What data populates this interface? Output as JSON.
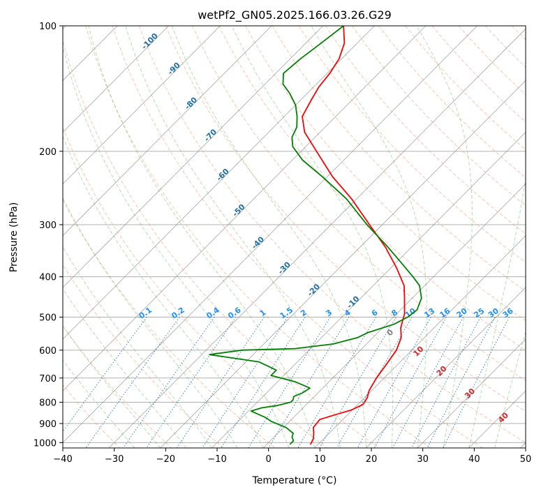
{
  "chart_data": {
    "type": "skew-t",
    "title": "wetPf2_GN05.2025.166.03.26.G29",
    "xlabel": "Temperature (°C)",
    "ylabel": "Pressure (hPa)",
    "xlim": [
      -40,
      50
    ],
    "ylim": [
      1030,
      100
    ],
    "y_scale": "log",
    "x_ticks": [
      -40,
      -30,
      -20,
      -10,
      0,
      10,
      20,
      30,
      40,
      50
    ],
    "y_ticks": [
      100,
      200,
      300,
      400,
      500,
      600,
      700,
      800,
      900,
      1000
    ],
    "grid": true,
    "colors": {
      "temperature": "#ff0000",
      "dewpoint": "#008000",
      "isotherm": "#808080",
      "dry_adiabat": "#ff7f50",
      "moist_adiabat": "#2ca02c",
      "mixing_ratio": "#1f77b4",
      "mixing_ratio_label": "#1e90ff",
      "isotherm_label": "#1f6fa8",
      "theta_e_label": "#d62728"
    },
    "isotherm_labels": [
      "-100",
      "-90",
      "-80",
      "-70",
      "-60",
      "-50",
      "-40",
      "-30",
      "-20",
      "-10"
    ],
    "mixing_ratio_labels": [
      "0.1",
      "0.2",
      "0.4",
      "0.6",
      "1",
      "1.5",
      "2",
      "3",
      "4",
      "6",
      "8",
      "10",
      "13",
      "16",
      "20",
      "25",
      "30",
      "36"
    ],
    "moist_adiabat_labels": [
      "0",
      "10",
      "20",
      "30",
      "40"
    ],
    "series": [
      {
        "name": "",
        "role": "temperature",
        "points": [
          {
            "p": 1010,
            "t": 8.5
          },
          {
            "p": 980,
            "t": 8.0
          },
          {
            "p": 950,
            "t": 7.0
          },
          {
            "p": 920,
            "t": 5.8
          },
          {
            "p": 880,
            "t": 5.5
          },
          {
            "p": 855,
            "t": 7.8
          },
          {
            "p": 835,
            "t": 9.8
          },
          {
            "p": 810,
            "t": 11.0
          },
          {
            "p": 780,
            "t": 10.5
          },
          {
            "p": 750,
            "t": 9.5
          },
          {
            "p": 700,
            "t": 8.5
          },
          {
            "p": 650,
            "t": 7.8
          },
          {
            "p": 600,
            "t": 7.0
          },
          {
            "p": 560,
            "t": 5.5
          },
          {
            "p": 530,
            "t": 3.5
          },
          {
            "p": 490,
            "t": 1.5
          },
          {
            "p": 450,
            "t": -1.5
          },
          {
            "p": 420,
            "t": -4.0
          },
          {
            "p": 380,
            "t": -9.0
          },
          {
            "p": 340,
            "t": -15.0
          },
          {
            "p": 300,
            "t": -22.5
          },
          {
            "p": 260,
            "t": -31.0
          },
          {
            "p": 230,
            "t": -39.0
          },
          {
            "p": 200,
            "t": -47.0
          },
          {
            "p": 180,
            "t": -53.0
          },
          {
            "p": 165,
            "t": -56.5
          },
          {
            "p": 150,
            "t": -58.0
          },
          {
            "p": 140,
            "t": -59.0
          },
          {
            "p": 130,
            "t": -59.5
          },
          {
            "p": 120,
            "t": -60.5
          },
          {
            "p": 110,
            "t": -62.5
          },
          {
            "p": 100,
            "t": -66.0
          }
        ]
      },
      {
        "name": "",
        "role": "dewpoint",
        "points": [
          {
            "p": 1010,
            "t": 4.5
          },
          {
            "p": 990,
            "t": 4.5
          },
          {
            "p": 970,
            "t": 3.5
          },
          {
            "p": 950,
            "t": 3.0
          },
          {
            "p": 920,
            "t": 0.5
          },
          {
            "p": 890,
            "t": -3.5
          },
          {
            "p": 870,
            "t": -5.5
          },
          {
            "p": 855,
            "t": -7.5
          },
          {
            "p": 840,
            "t": -9.5
          },
          {
            "p": 825,
            "t": -8.0
          },
          {
            "p": 815,
            "t": -5.5
          },
          {
            "p": 800,
            "t": -3.5
          },
          {
            "p": 790,
            "t": -3.5
          },
          {
            "p": 775,
            "t": -4.0
          },
          {
            "p": 760,
            "t": -3.0
          },
          {
            "p": 740,
            "t": -2.5
          },
          {
            "p": 715,
            "t": -6.5
          },
          {
            "p": 690,
            "t": -12.5
          },
          {
            "p": 670,
            "t": -12.5
          },
          {
            "p": 640,
            "t": -17.5
          },
          {
            "p": 615,
            "t": -28.5
          },
          {
            "p": 600,
            "t": -23.0
          },
          {
            "p": 595,
            "t": -13.0
          },
          {
            "p": 580,
            "t": -6.5
          },
          {
            "p": 560,
            "t": -3.0
          },
          {
            "p": 545,
            "t": -2.0
          },
          {
            "p": 520,
            "t": 1.5
          },
          {
            "p": 500,
            "t": 2.8
          },
          {
            "p": 480,
            "t": 3.2
          },
          {
            "p": 450,
            "t": 1.8
          },
          {
            "p": 420,
            "t": -1.0
          },
          {
            "p": 400,
            "t": -4.0
          },
          {
            "p": 370,
            "t": -9.0
          },
          {
            "p": 340,
            "t": -14.5
          },
          {
            "p": 300,
            "t": -23.0
          },
          {
            "p": 260,
            "t": -32.0
          },
          {
            "p": 230,
            "t": -41.0
          },
          {
            "p": 210,
            "t": -48.0
          },
          {
            "p": 195,
            "t": -52.5
          },
          {
            "p": 185,
            "t": -54.5
          },
          {
            "p": 175,
            "t": -55.5
          },
          {
            "p": 165,
            "t": -57.5
          },
          {
            "p": 155,
            "t": -60.0
          },
          {
            "p": 145,
            "t": -63.5
          },
          {
            "p": 138,
            "t": -66.5
          },
          {
            "p": 130,
            "t": -68.5
          },
          {
            "p": 120,
            "t": -68.0
          },
          {
            "p": 110,
            "t": -67.0
          },
          {
            "p": 100,
            "t": -66.0
          }
        ]
      }
    ]
  }
}
